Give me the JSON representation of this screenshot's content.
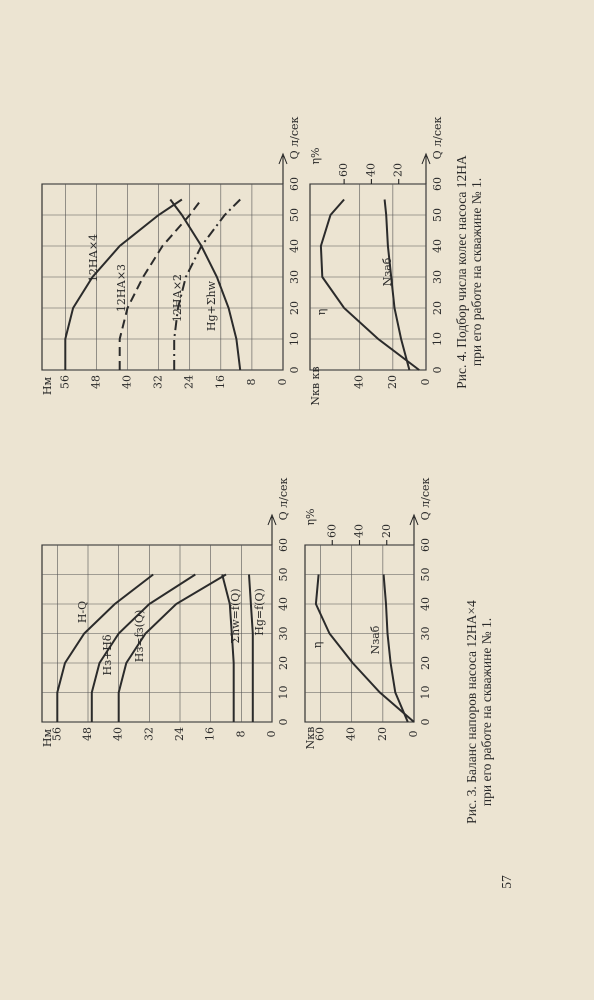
{
  "chart_data": [
    {
      "type": "line",
      "x_label": "Q л/сек",
      "y_label": "Hм",
      "xlim": [
        0,
        60
      ],
      "xticks": [
        0,
        10,
        20,
        30,
        40,
        50,
        60
      ],
      "ylim": [
        0,
        60
      ],
      "yticks": [
        0,
        8,
        16,
        24,
        32,
        40,
        48,
        56
      ],
      "grid": true,
      "x": [
        0,
        10,
        20,
        30,
        40,
        50
      ],
      "series": [
        {
          "name": "H-Q",
          "color": "#2b2b2b",
          "values": [
            56,
            56,
            54,
            49,
            41,
            31
          ]
        },
        {
          "name": "Hз+Hδ",
          "color": "#2b2b2b",
          "values": [
            47,
            47,
            45,
            40,
            32,
            20
          ]
        },
        {
          "name": "Hз=fз(Q)",
          "color": "#2b2b2b",
          "values": [
            40,
            40,
            38,
            33,
            25,
            12
          ]
        },
        {
          "name": "Σhw=f(Q)",
          "color": "#2b2b2b",
          "values": [
            10,
            10,
            10,
            10.5,
            11,
            13
          ]
        },
        {
          "name": "Hg=f(Q)",
          "color": "#2b2b2b",
          "values": [
            5,
            5,
            5,
            5,
            5.5,
            6
          ]
        }
      ]
    },
    {
      "type": "line",
      "x_label": "Q л/сек",
      "y_label": "Nкв",
      "y2_label": "η%",
      "xlim": [
        0,
        60
      ],
      "xticks": [
        0,
        10,
        20,
        30,
        40,
        50,
        60
      ],
      "ylim": [
        0,
        70
      ],
      "yticks": [
        0,
        20,
        40,
        60
      ],
      "y2lim": [
        0,
        80
      ],
      "y2ticks": [
        20,
        40,
        60
      ],
      "grid": true,
      "x": [
        0,
        10,
        20,
        30,
        40,
        50
      ],
      "series": [
        {
          "name": "η",
          "color": "#2b2b2b",
          "axis": "y2",
          "values": [
            0,
            25,
            45,
            62,
            72,
            70
          ]
        },
        {
          "name": "Nзаб",
          "color": "#2b2b2b",
          "values": [
            4,
            12,
            15,
            17,
            18,
            19.5
          ]
        }
      ]
    },
    {
      "type": "line",
      "x_label": "Q л/сек",
      "y_label": "Hм",
      "xlim": [
        0,
        60
      ],
      "xticks": [
        0,
        10,
        20,
        30,
        40,
        50,
        60
      ],
      "ylim": [
        0,
        62
      ],
      "yticks": [
        0,
        8,
        16,
        24,
        32,
        40,
        48,
        56
      ],
      "grid": true,
      "x": [
        0,
        10,
        20,
        30,
        40,
        50,
        55
      ],
      "series": [
        {
          "name": "12НА×4",
          "color": "#2b2b2b",
          "line_style": "solid",
          "values": [
            56,
            56,
            54,
            49,
            42,
            32,
            26
          ]
        },
        {
          "name": "12НА×3",
          "color": "#2b2b2b",
          "line_style": "dashed",
          "values": [
            42,
            42,
            40,
            36,
            31,
            24,
            21
          ]
        },
        {
          "name": "12НА×2",
          "color": "#2b2b2b",
          "line_style": "dashdot",
          "values": [
            28,
            28,
            27,
            25,
            21,
            15,
            11
          ]
        },
        {
          "name": "Hg+Σhw",
          "color": "#2b2b2b",
          "line_style": "solid",
          "values": [
            11,
            12,
            14,
            17,
            21,
            26,
            29
          ]
        }
      ]
    },
    {
      "type": "line",
      "x_label": "Q л/сек",
      "y_label": "Nкв кв",
      "y2_label": "η%",
      "xlim": [
        0,
        60
      ],
      "xticks": [
        0,
        10,
        20,
        30,
        40,
        50,
        60
      ],
      "ylim": [
        0,
        70
      ],
      "yticks": [
        0,
        20,
        40
      ],
      "y2lim": [
        0,
        85
      ],
      "y2ticks": [
        20,
        40,
        60
      ],
      "grid": true,
      "x": [
        0,
        10,
        20,
        30,
        40,
        50,
        55
      ],
      "series": [
        {
          "name": "η",
          "color": "#2b2b2b",
          "axis": "y2",
          "values": [
            5,
            35,
            60,
            76,
            77,
            70,
            60
          ]
        },
        {
          "name": "Nзаб",
          "color": "#2b2b2b",
          "values": [
            10,
            15,
            19,
            21,
            23,
            24,
            25
          ]
        }
      ]
    }
  ],
  "captions": [
    "Рис. 3. Баланс напоров насоса 12НА×4",
    "при его работе на скважине № 1.",
    "Рис. 4. Подбор числа колес насоса 12НА",
    "при его работе на скважине № 1."
  ],
  "page_number": "57"
}
